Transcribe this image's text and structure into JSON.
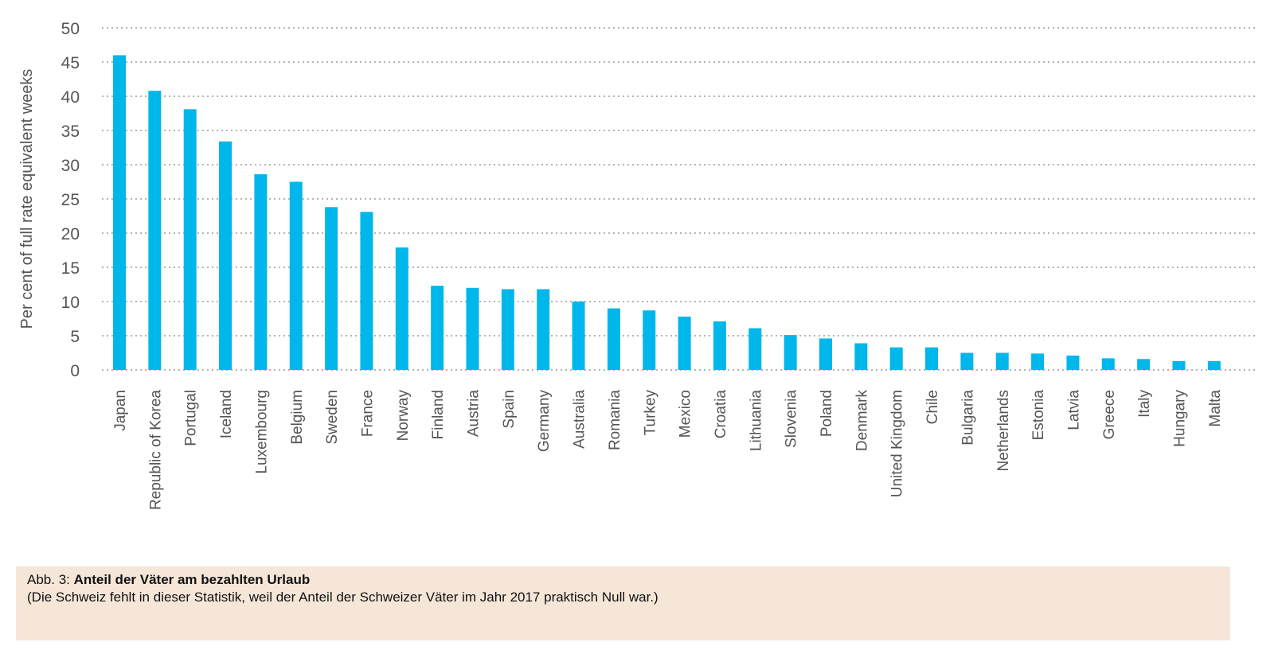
{
  "chart_data": {
    "type": "bar",
    "title": "",
    "xlabel": "",
    "ylabel": "Per cent of full rate equivalent weeks",
    "ylim": [
      0,
      50
    ],
    "yticks": [
      0,
      5,
      10,
      15,
      20,
      25,
      30,
      35,
      40,
      45,
      50
    ],
    "grid": true,
    "gridstyle": "dotted-horizontal",
    "bar_color": "#00b7eb",
    "categories": [
      "Japan",
      "Republic of Korea",
      "Portugal",
      "Iceland",
      "Luxembourg",
      "Belgium",
      "Sweden",
      "France",
      "Norway",
      "Finland",
      "Austria",
      "Spain",
      "Germany",
      "Australia",
      "Romania",
      "Turkey",
      "Mexico",
      "Croatia",
      "Lithuania",
      "Slovenia",
      "Poland",
      "Denmark",
      "United Kingdom",
      "Chile",
      "Bulgaria",
      "Netherlands",
      "Estonia",
      "Latvia",
      "Greece",
      "Italy",
      "Hungary",
      "Malta"
    ],
    "values": [
      46.0,
      40.8,
      38.1,
      33.4,
      28.6,
      27.5,
      23.8,
      23.1,
      17.9,
      12.3,
      12.0,
      11.8,
      11.8,
      10.0,
      9.0,
      8.7,
      7.8,
      7.1,
      6.1,
      5.1,
      4.6,
      3.9,
      3.3,
      3.3,
      2.5,
      2.5,
      2.4,
      2.1,
      1.7,
      1.6,
      1.3,
      1.3
    ]
  },
  "caption": {
    "prefix": "Abb. 3: ",
    "title": "Anteil der Väter am bezahlten Urlaub",
    "note": "(Die Schweiz fehlt in dieser Statistik, weil der Anteil der Schweizer Väter im Jahr 2017 praktisch Null war.)"
  }
}
